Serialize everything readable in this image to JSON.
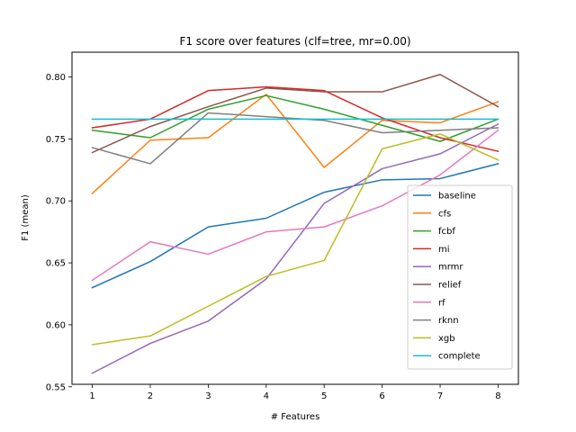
{
  "chart_data": {
    "type": "line",
    "title": "F1 score over features (clf=tree, mr=0.00)",
    "xlabel": "# Features",
    "ylabel": "F1 (mean)",
    "x": [
      1,
      2,
      3,
      4,
      5,
      6,
      7,
      8
    ],
    "xticks": [
      "1",
      "2",
      "3",
      "4",
      "5",
      "6",
      "7",
      "8"
    ],
    "yticks": [
      "0.55",
      "0.60",
      "0.65",
      "0.70",
      "0.75",
      "0.80"
    ],
    "ylim": [
      0.552,
      0.82
    ],
    "legend_position": "lower right",
    "grid": false,
    "series": [
      {
        "name": "baseline",
        "color": "#1f77b4",
        "values": [
          0.63,
          0.651,
          0.679,
          0.686,
          0.707,
          0.717,
          0.718,
          0.73
        ]
      },
      {
        "name": "cfs",
        "color": "#ff7f0e",
        "values": [
          0.706,
          0.749,
          0.751,
          0.786,
          0.727,
          0.765,
          0.763,
          0.78
        ]
      },
      {
        "name": "fcbf",
        "color": "#2ca02c",
        "values": [
          0.757,
          0.751,
          0.774,
          0.785,
          0.774,
          0.761,
          0.748,
          0.766
        ]
      },
      {
        "name": "mi",
        "color": "#d62728",
        "values": [
          0.759,
          0.766,
          0.789,
          0.792,
          0.789,
          0.767,
          0.751,
          0.74
        ]
      },
      {
        "name": "mrmr",
        "color": "#9467bd",
        "values": [
          0.561,
          0.585,
          0.603,
          0.637,
          0.698,
          0.726,
          0.738,
          0.762
        ]
      },
      {
        "name": "relief",
        "color": "#8c564b",
        "values": [
          0.739,
          0.76,
          0.776,
          0.791,
          0.788,
          0.788,
          0.802,
          0.776
        ]
      },
      {
        "name": "rf",
        "color": "#e377c2",
        "values": [
          0.636,
          0.667,
          0.657,
          0.675,
          0.679,
          0.696,
          0.721,
          0.757
        ]
      },
      {
        "name": "rknn",
        "color": "#7f7f7f",
        "values": [
          0.743,
          0.73,
          0.771,
          0.768,
          0.765,
          0.755,
          0.757,
          0.759
        ]
      },
      {
        "name": "xgb",
        "color": "#bcbd22",
        "values": [
          0.584,
          0.591,
          0.615,
          0.639,
          0.652,
          0.742,
          0.754,
          0.733
        ]
      },
      {
        "name": "complete",
        "color": "#17becf",
        "values": [
          0.766,
          0.766,
          0.766,
          0.766,
          0.766,
          0.766,
          0.766,
          0.766
        ]
      }
    ]
  }
}
